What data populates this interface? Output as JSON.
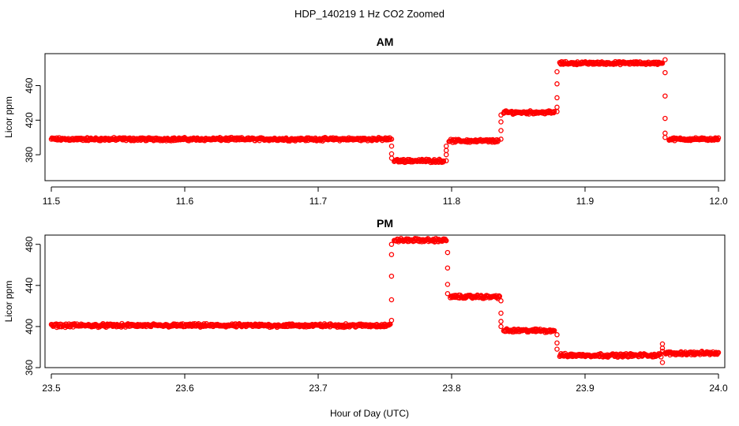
{
  "figure": {
    "title": "HDP_140219  1 Hz CO2 Zoomed",
    "xlabel": "Hour of Day (UTC)"
  },
  "chart_data": [
    {
      "type": "scatter",
      "title": "AM",
      "xlabel": "",
      "ylabel": "Licor ppm",
      "xlim": [
        11.5,
        12.0
      ],
      "ylim": [
        350,
        497
      ],
      "x_ticks": [
        "11.5",
        "11.6",
        "11.7",
        "11.8",
        "11.9",
        "12.0"
      ],
      "y_ticks": [
        "380",
        "420",
        "460"
      ],
      "grid": false,
      "legend": "none",
      "series_color": "#ff0000",
      "segments": [
        {
          "x_start": 11.5,
          "x_end": 11.754,
          "y": 398,
          "spread": 2.2
        },
        {
          "x_start": 11.757,
          "x_end": 11.794,
          "y": 373,
          "spread": 2.2
        },
        {
          "x_start": 11.798,
          "x_end": 11.835,
          "y": 396,
          "spread": 2.2
        },
        {
          "x_start": 11.839,
          "x_end": 11.877,
          "y": 429,
          "spread": 2.2
        },
        {
          "x_start": 11.881,
          "x_end": 11.958,
          "y": 486,
          "spread": 2.0
        },
        {
          "x_start": 11.963,
          "x_end": 12.0,
          "y": 398,
          "spread": 2.0
        }
      ],
      "transitions": [
        {
          "x": 11.755,
          "y": [
            398,
            390,
            381,
            376
          ]
        },
        {
          "x": 11.796,
          "y": [
            373,
            380,
            385,
            390
          ]
        },
        {
          "x": 11.837,
          "y": [
            398,
            408,
            418,
            426
          ]
        },
        {
          "x": 11.879,
          "y": [
            430,
            435,
            446,
            462,
            476
          ]
        },
        {
          "x": 11.96,
          "y": [
            490,
            475,
            448,
            422,
            405,
            400
          ]
        }
      ]
    },
    {
      "type": "scatter",
      "title": "PM",
      "xlabel": "",
      "ylabel": "Licor ppm",
      "xlim": [
        23.5,
        24.0
      ],
      "ylim": [
        360,
        489
      ],
      "x_ticks": [
        "23.5",
        "23.6",
        "23.7",
        "23.8",
        "23.9",
        "24.0"
      ],
      "y_ticks": [
        "360",
        "400",
        "440",
        "480"
      ],
      "grid": false,
      "legend": "none",
      "series_color": "#ff0000",
      "segments": [
        {
          "x_start": 23.5,
          "x_end": 23.754,
          "y": 401,
          "spread": 2.0
        },
        {
          "x_start": 23.757,
          "x_end": 23.796,
          "y": 484,
          "spread": 2.0
        },
        {
          "x_start": 23.799,
          "x_end": 23.836,
          "y": 429,
          "spread": 2.0
        },
        {
          "x_start": 23.839,
          "x_end": 23.877,
          "y": 396,
          "spread": 2.0
        },
        {
          "x_start": 23.881,
          "x_end": 23.957,
          "y": 372,
          "spread": 2.0
        },
        {
          "x_start": 23.96,
          "x_end": 24.0,
          "y": 374,
          "spread": 2.0
        }
      ],
      "transitions": [
        {
          "x": 23.755,
          "y": [
            406,
            426,
            449,
            470,
            480
          ]
        },
        {
          "x": 23.797,
          "y": [
            472,
            457,
            441,
            432
          ]
        },
        {
          "x": 23.837,
          "y": [
            425,
            413,
            405,
            400
          ]
        },
        {
          "x": 23.879,
          "y": [
            392,
            384,
            378
          ]
        },
        {
          "x": 23.958,
          "y": [
            365,
            383,
            379,
            376
          ]
        }
      ]
    }
  ]
}
